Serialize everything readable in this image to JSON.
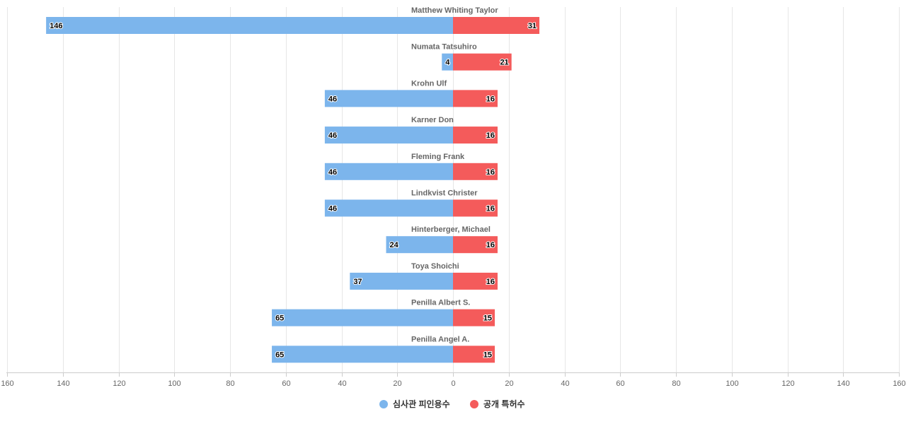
{
  "chart_data": {
    "type": "bar",
    "orientation": "horizontal-diverging",
    "categories": [
      "Matthew Whiting Taylor",
      "Numata Tatsuhiro",
      "Krohn Ulf",
      "Karner Don",
      "Fleming Frank",
      "Lindkvist Christer",
      "Hinterberger, Michael",
      "Toya Shoichi",
      "Penilla Albert S.",
      "Penilla Angel A."
    ],
    "series": [
      {
        "name": "심사관 피인용수",
        "color": "#7cb5ec",
        "direction": "left",
        "values": [
          146,
          4,
          46,
          46,
          46,
          46,
          24,
          37,
          65,
          65
        ]
      },
      {
        "name": "공개 특허수",
        "color": "#f45b5b",
        "direction": "right",
        "values": [
          31,
          21,
          16,
          16,
          16,
          16,
          16,
          16,
          15,
          15
        ]
      }
    ],
    "xlim": [
      -160,
      160
    ],
    "x_ticks": [
      "160",
      "140",
      "120",
      "100",
      "80",
      "60",
      "40",
      "20",
      "0",
      "20",
      "40",
      "60",
      "80",
      "100",
      "120",
      "140",
      "160"
    ],
    "title": "",
    "xlabel": "",
    "ylabel": "",
    "grid": true,
    "legend_position": "bottom-center"
  }
}
